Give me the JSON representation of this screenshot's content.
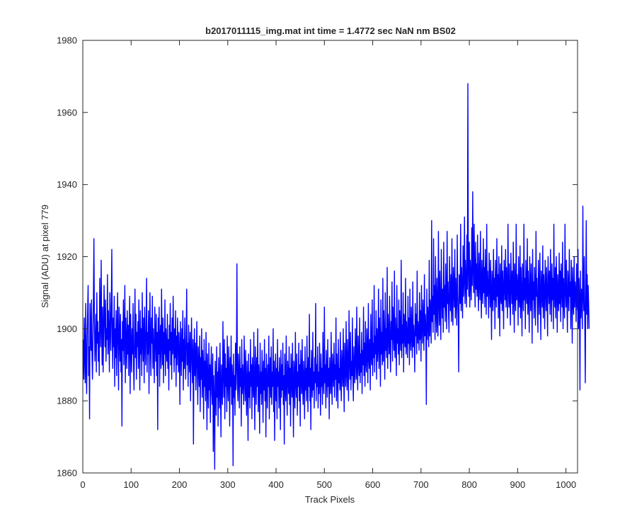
{
  "chart_data": {
    "type": "line",
    "title": "b2017011115_img.mat int time = 1.4772 sec  NaN nm BS02",
    "xlabel": "Track Pixels",
    "ylabel": "Signal (ADU) at pixel 779",
    "xlim": [
      0,
      1024
    ],
    "ylim": [
      1860,
      1980
    ],
    "xticks": [
      0,
      100,
      200,
      300,
      400,
      500,
      600,
      700,
      800,
      900,
      1000
    ],
    "yticks": [
      1860,
      1880,
      1900,
      1920,
      1940,
      1960,
      1980
    ],
    "grid": false,
    "series_color": "#0000ff",
    "series": [
      {
        "x_start": 1,
        "x_step": 1,
        "values": [
          1897,
          1886,
          1903,
          1893,
          1885,
          1907,
          1889,
          1882,
          1898,
          1905,
          1912,
          1887,
          1895,
          1875,
          1907,
          1901,
          1894,
          1908,
          1893,
          1886,
          1896,
          1909,
          1925,
          1902,
          1891,
          1897,
          1904,
          1888,
          1910,
          1896,
          1902,
          1891,
          1899,
          1887,
          1914,
          1903,
          1895,
          1919,
          1901,
          1890,
          1906,
          1888,
          1898,
          1912,
          1903,
          1895,
          1908,
          1891,
          1900,
          1897,
          1915,
          1893,
          1905,
          1899,
          1888,
          1910,
          1902,
          1894,
          1906,
          1922,
          1897,
          1889,
          1903,
          1895,
          1909,
          1884,
          1900,
          1892,
          1905,
          1887,
          1898,
          1910,
          1895,
          1883,
          1906,
          1899,
          1891,
          1904,
          1888,
          1897,
          1873,
          1902,
          1894,
          1908,
          1890,
          1899,
          1912,
          1885,
          1903,
          1896,
          1889,
          1905,
          1893,
          1901,
          1887,
          1898,
          1909,
          1882,
          1904,
          1895,
          1888,
          1900,
          1893,
          1907,
          1890,
          1883,
          1898,
          1911,
          1892,
          1904,
          1886,
          1899,
          1895,
          1902,
          1889,
          1908,
          1896,
          1883,
          1905,
          1893,
          1900,
          1887,
          1910,
          1897,
          1891,
          1903,
          1885,
          1906,
          1896,
          1890,
          1901,
          1914,
          1888,
          1899,
          1893,
          1905,
          1882,
          1898,
          1910,
          1894,
          1887,
          1903,
          1896,
          1909,
          1889,
          1900,
          1893,
          1885,
          1906,
          1898,
          1891,
          1904,
          1887,
          1899,
          1872,
          1903,
          1893,
          1906,
          1884,
          1898,
          1901,
          1889,
          1911,
          1896,
          1890,
          1903,
          1885,
          1899,
          1893,
          1908,
          1887,
          1900,
          1895,
          1891,
          1904,
          1889,
          1897,
          1883,
          1901,
          1894,
          1907,
          1890,
          1899,
          1886,
          1903,
          1893,
          1909,
          1896,
          1888,
          1900,
          1892,
          1905,
          1884,
          1898,
          1890,
          1903,
          1896,
          1888,
          1899,
          1893,
          1879,
          1902,
          1895,
          1887,
          1900,
          1891,
          1905,
          1883,
          1897,
          1889,
          1903,
          1892,
          1886,
          1898,
          1911,
          1890,
          1896,
          1884,
          1901,
          1893,
          1888,
          1899,
          1880,
          1894,
          1903,
          1890,
          1885,
          1897,
          1868,
          1892,
          1900,
          1887,
          1896,
          1883,
          1891,
          1902,
          1888,
          1879,
          1895,
          1890,
          1884,
          1898,
          1877,
          1892,
          1886,
          1900,
          1881,
          1894,
          1889,
          1875,
          1897,
          1884,
          1891,
          1880,
          1899,
          1887,
          1872,
          1893,
          1885,
          1878,
          1896,
          1883,
          1890,
          1874,
          1888,
          1895,
          1882,
          1879,
          1893,
          1866,
          1887,
          1880,
          1861,
          1891,
          1884,
          1876,
          1895,
          1881,
          1888,
          1873,
          1892,
          1885,
          1878,
          1896,
          1883,
          1870,
          1890,
          1886,
          1879,
          1902,
          1888,
          1881,
          1897,
          1875,
          1893,
          1884,
          1889,
          1877,
          1898,
          1885,
          1880,
          1895,
          1888,
          1873,
          1892,
          1884,
          1898,
          1879,
          1890,
          1886,
          1862,
          1893,
          1881,
          1887,
          1876,
          1896,
          1883,
          1890,
          1918,
          1885,
          1880,
          1893,
          1887,
          1878,
          1895,
          1884,
          1889,
          1873,
          1897,
          1882,
          1890,
          1885,
          1879,
          1898,
          1887,
          1880,
          1894,
          1884,
          1876,
          1891,
          1886,
          1869,
          1893,
          1881,
          1888,
          1878,
          1897,
          1884,
          1890,
          1875,
          1892,
          1886,
          1881,
          1899,
          1883,
          1872,
          1895,
          1888,
          1879,
          1892,
          1884,
          1900,
          1877,
          1890,
          1885,
          1871,
          1896,
          1882,
          1888,
          1879,
          1894,
          1886,
          1874,
          1891,
          1883,
          1897,
          1880,
          1889,
          1870,
          1893,
          1885,
          1878,
          1890,
          1884,
          1898,
          1875,
          1887,
          1892,
          1881,
          1895,
          1879,
          1888,
          1884,
          1900,
          1877,
          1891,
          1869,
          1886,
          1893,
          1880,
          1889,
          1875,
          1897,
          1884,
          1888,
          1878,
          1892,
          1886,
          1872,
          1894,
          1881,
          1890,
          1883,
          1896,
          1879,
          1887,
          1868,
          1893,
          1885,
          1880,
          1898,
          1884,
          1876,
          1891,
          1887,
          1882,
          1895,
          1879,
          1889,
          1873,
          1893,
          1886,
          1881,
          1896,
          1884,
          1870,
          1891,
          1887,
          1878,
          1899,
          1885,
          1881,
          1893,
          1876,
          1888,
          1884,
          1896,
          1880,
          1890,
          1873,
          1894,
          1887,
          1882,
          1897,
          1884,
          1879,
          1891,
          1886,
          1875,
          1895,
          1883,
          1889,
          1880,
          1898,
          1886,
          1877,
          1892,
          1884,
          1904,
          1880,
          1889,
          1872,
          1894,
          1886,
          1881,
          1899,
          1883,
          1888,
          1878,
          1892,
          1885,
          1907,
          1880,
          1890,
          1884,
          1895,
          1878,
          1888,
          1882,
          1896,
          1887,
          1876,
          1893,
          1884,
          1889,
          1879,
          1899,
          1886,
          1882,
          1906,
          1885,
          1890,
          1878,
          1894,
          1887,
          1881,
          1897,
          1884,
          1889,
          1875,
          1892,
          1887,
          1882,
          1899,
          1886,
          1879,
          1893,
          1888,
          1884,
          1896,
          1881,
          1890,
          1886,
          1903,
          1880,
          1893,
          1887,
          1878,
          1897,
          1885,
          1889,
          1883,
          1899,
          1886,
          1880,
          1894,
          1889,
          1884,
          1900,
          1887,
          1877,
          1896,
          1891,
          1884,
          1902,
          1888,
          1883,
          1897,
          1889,
          1880,
          1905,
          1892,
          1886,
          1899,
          1883,
          1891,
          1887,
          1903,
          1886,
          1880,
          1895,
          1889,
          1885,
          1900,
          1892,
          1886,
          1906,
          1889,
          1883,
          1898,
          1891,
          1887,
          1903,
          1885,
          1893,
          1888,
          1899,
          1882,
          1894,
          1890,
          1906,
          1887,
          1896,
          1884,
          1902,
          1891,
          1888,
          1900,
          1894,
          1885,
          1907,
          1892,
          1889,
          1897,
          1883,
          1904,
          1893,
          1890,
          1908,
          1887,
          1896,
          1892,
          1912,
          1888,
          1898,
          1893,
          1905,
          1886,
          1900,
          1891,
          1895,
          1911,
          1889,
          1903,
          1896,
          1884,
          1908,
          1893,
          1899,
          1890,
          1914,
          1891,
          1905,
          1897,
          1886,
          1910,
          1894,
          1900,
          1892,
          1917,
          1889,
          1904,
          1898,
          1893,
          1909,
          1895,
          1888,
          1902,
          1897,
          1913,
          1891,
          1906,
          1899,
          1894,
          1916,
          1892,
          1903,
          1897,
          1887,
          1912,
          1896,
          1900,
          1893,
          1908,
          1890,
          1905,
          1898,
          1894,
          1919,
          1892,
          1901,
          1896,
          1910,
          1888,
          1904,
          1899,
          1895,
          1914,
          1893,
          1902,
          1897,
          1892,
          1909,
          1896,
          1903,
          1890,
          1911,
          1897,
          1894,
          1906,
          1899,
          1892,
          1913,
          1895,
          1901,
          1897,
          1888,
          1907,
          1898,
          1904,
          1893,
          1916,
          1896,
          1902,
          1899,
          1894,
          1910,
          1897,
          1905,
          1891,
          1912,
          1899,
          1896,
          1908,
          1902,
          1894,
          1915,
          1898,
          1904,
          1900,
          1879,
          1911,
          1897,
          1906,
          1902,
          1895,
          1919,
          1898,
          1908,
          1903,
          1896,
          1930,
          1902,
          1909,
          1899,
          1925,
          1904,
          1912,
          1897,
          1920,
          1906,
          1899,
          1914,
          1903,
          1898,
          1927,
          1908,
          1901,
          1916,
          1905,
          1897,
          1922,
          1909,
          1903,
          1911,
          1899,
          1924,
          1906,
          1912,
          1902,
          1918,
          1909,
          1900,
          1927,
          1907,
          1913,
          1904,
          1899,
          1920,
          1910,
          1905,
          1915,
          1902,
          1925,
          1908,
          1901,
          1917,
          1911,
          1906,
          1922,
          1903,
          1914,
          1909,
          1901,
          1926,
          1910,
          1904,
          1888,
          1915,
          1912,
          1907,
          1929,
          1905,
          1917,
          1911,
          1903,
          1923,
          1909,
          1914,
          1931,
          1907,
          1919,
          1912,
          1906,
          1926,
          1911,
          1968,
          1916,
          1909,
          1924,
          1906,
          1919,
          1913,
          1908,
          1928,
          1912,
          1938,
          1917,
          1910,
          1929,
          1914,
          1906,
          1924,
          1911,
          1918,
          1909,
          1926,
          1912,
          1905,
          1921,
          1914,
          1908,
          1927,
          1911,
          1903,
          1919,
          1913,
          1907,
          1925,
          1910,
          1917,
          1906,
          1922,
          1912,
          1904,
          1929,
          1909,
          1916,
          1911,
          1903,
          1921,
          1913,
          1906,
          1919,
          1910,
          1897,
          1916,
          1912,
          1905,
          1922,
          1908,
          1914,
          1900,
          1919,
          1911,
          1906,
          1925,
          1909,
          1915,
          1903,
          1920,
          1912,
          1898,
          1918,
          1910,
          1907,
          1923,
          1905,
          1916,
          1911,
          1900,
          1919,
          1913,
          1908,
          1922,
          1906,
          1917,
          1910,
          1903,
          1929,
          1912,
          1906,
          1918,
          1909,
          1901,
          1921,
          1913,
          1907,
          1916,
          1904,
          1924,
          1911,
          1899,
          1918,
          1910,
          1905,
          1929,
          1908,
          1915,
          1912,
          1901,
          1920,
          1909,
          1906,
          1923,
          1903,
          1917,
          1910,
          1898,
          1918,
          1912,
          1905,
          1929,
          1908,
          1914,
          1900,
          1919,
          1911,
          1907,
          1925,
          1904,
          1916,
          1909,
          1899,
          1920,
          1912,
          1905,
          1918,
          1910,
          1896,
          1922,
          1908,
          1913,
          1903,
          1917,
          1911,
          1901,
          1927,
          1909,
          1914,
          1906,
          1899,
          1919,
          1912,
          1904,
          1921,
          1909,
          1897,
          1916,
          1911,
          1906,
          1923,
          1903,
          1915,
          1910,
          1900,
          1919,
          1912,
          1905,
          1917,
          1909,
          1898,
          1920,
          1913,
          1907,
          1916,
          1904,
          1922,
          1911,
          1902,
          1918,
          1908,
          1914,
          1900,
          1929,
          1910,
          1906,
          1917,
          1903,
          1920,
          1912,
          1899,
          1915,
          1909,
          1905,
          1921,
          1907,
          1916,
          1902,
          1918,
          1911,
          1906,
          1924,
          1900,
          1914,
          1909,
          1903,
          1929,
          1911,
          1906,
          1919,
          1908,
          1899,
          1916,
          1912,
          1905,
          1922,
          1909,
          1913,
          1900,
          1919,
          1911,
          1896,
          1917,
          1908,
          1904,
          1920,
          1906,
          1913,
          1910,
          1902,
          1918,
          1907,
          1905,
          1922,
          1900,
          1914,
          1908,
          1883,
          1916,
          1903,
          1911,
          1907,
          1900,
          1934,
          1909,
          1905,
          1920,
          1902,
          1885,
          1910,
          1930,
          1904,
          1915,
          1900,
          1912,
          1907,
          1900
        ]
      }
    ]
  }
}
